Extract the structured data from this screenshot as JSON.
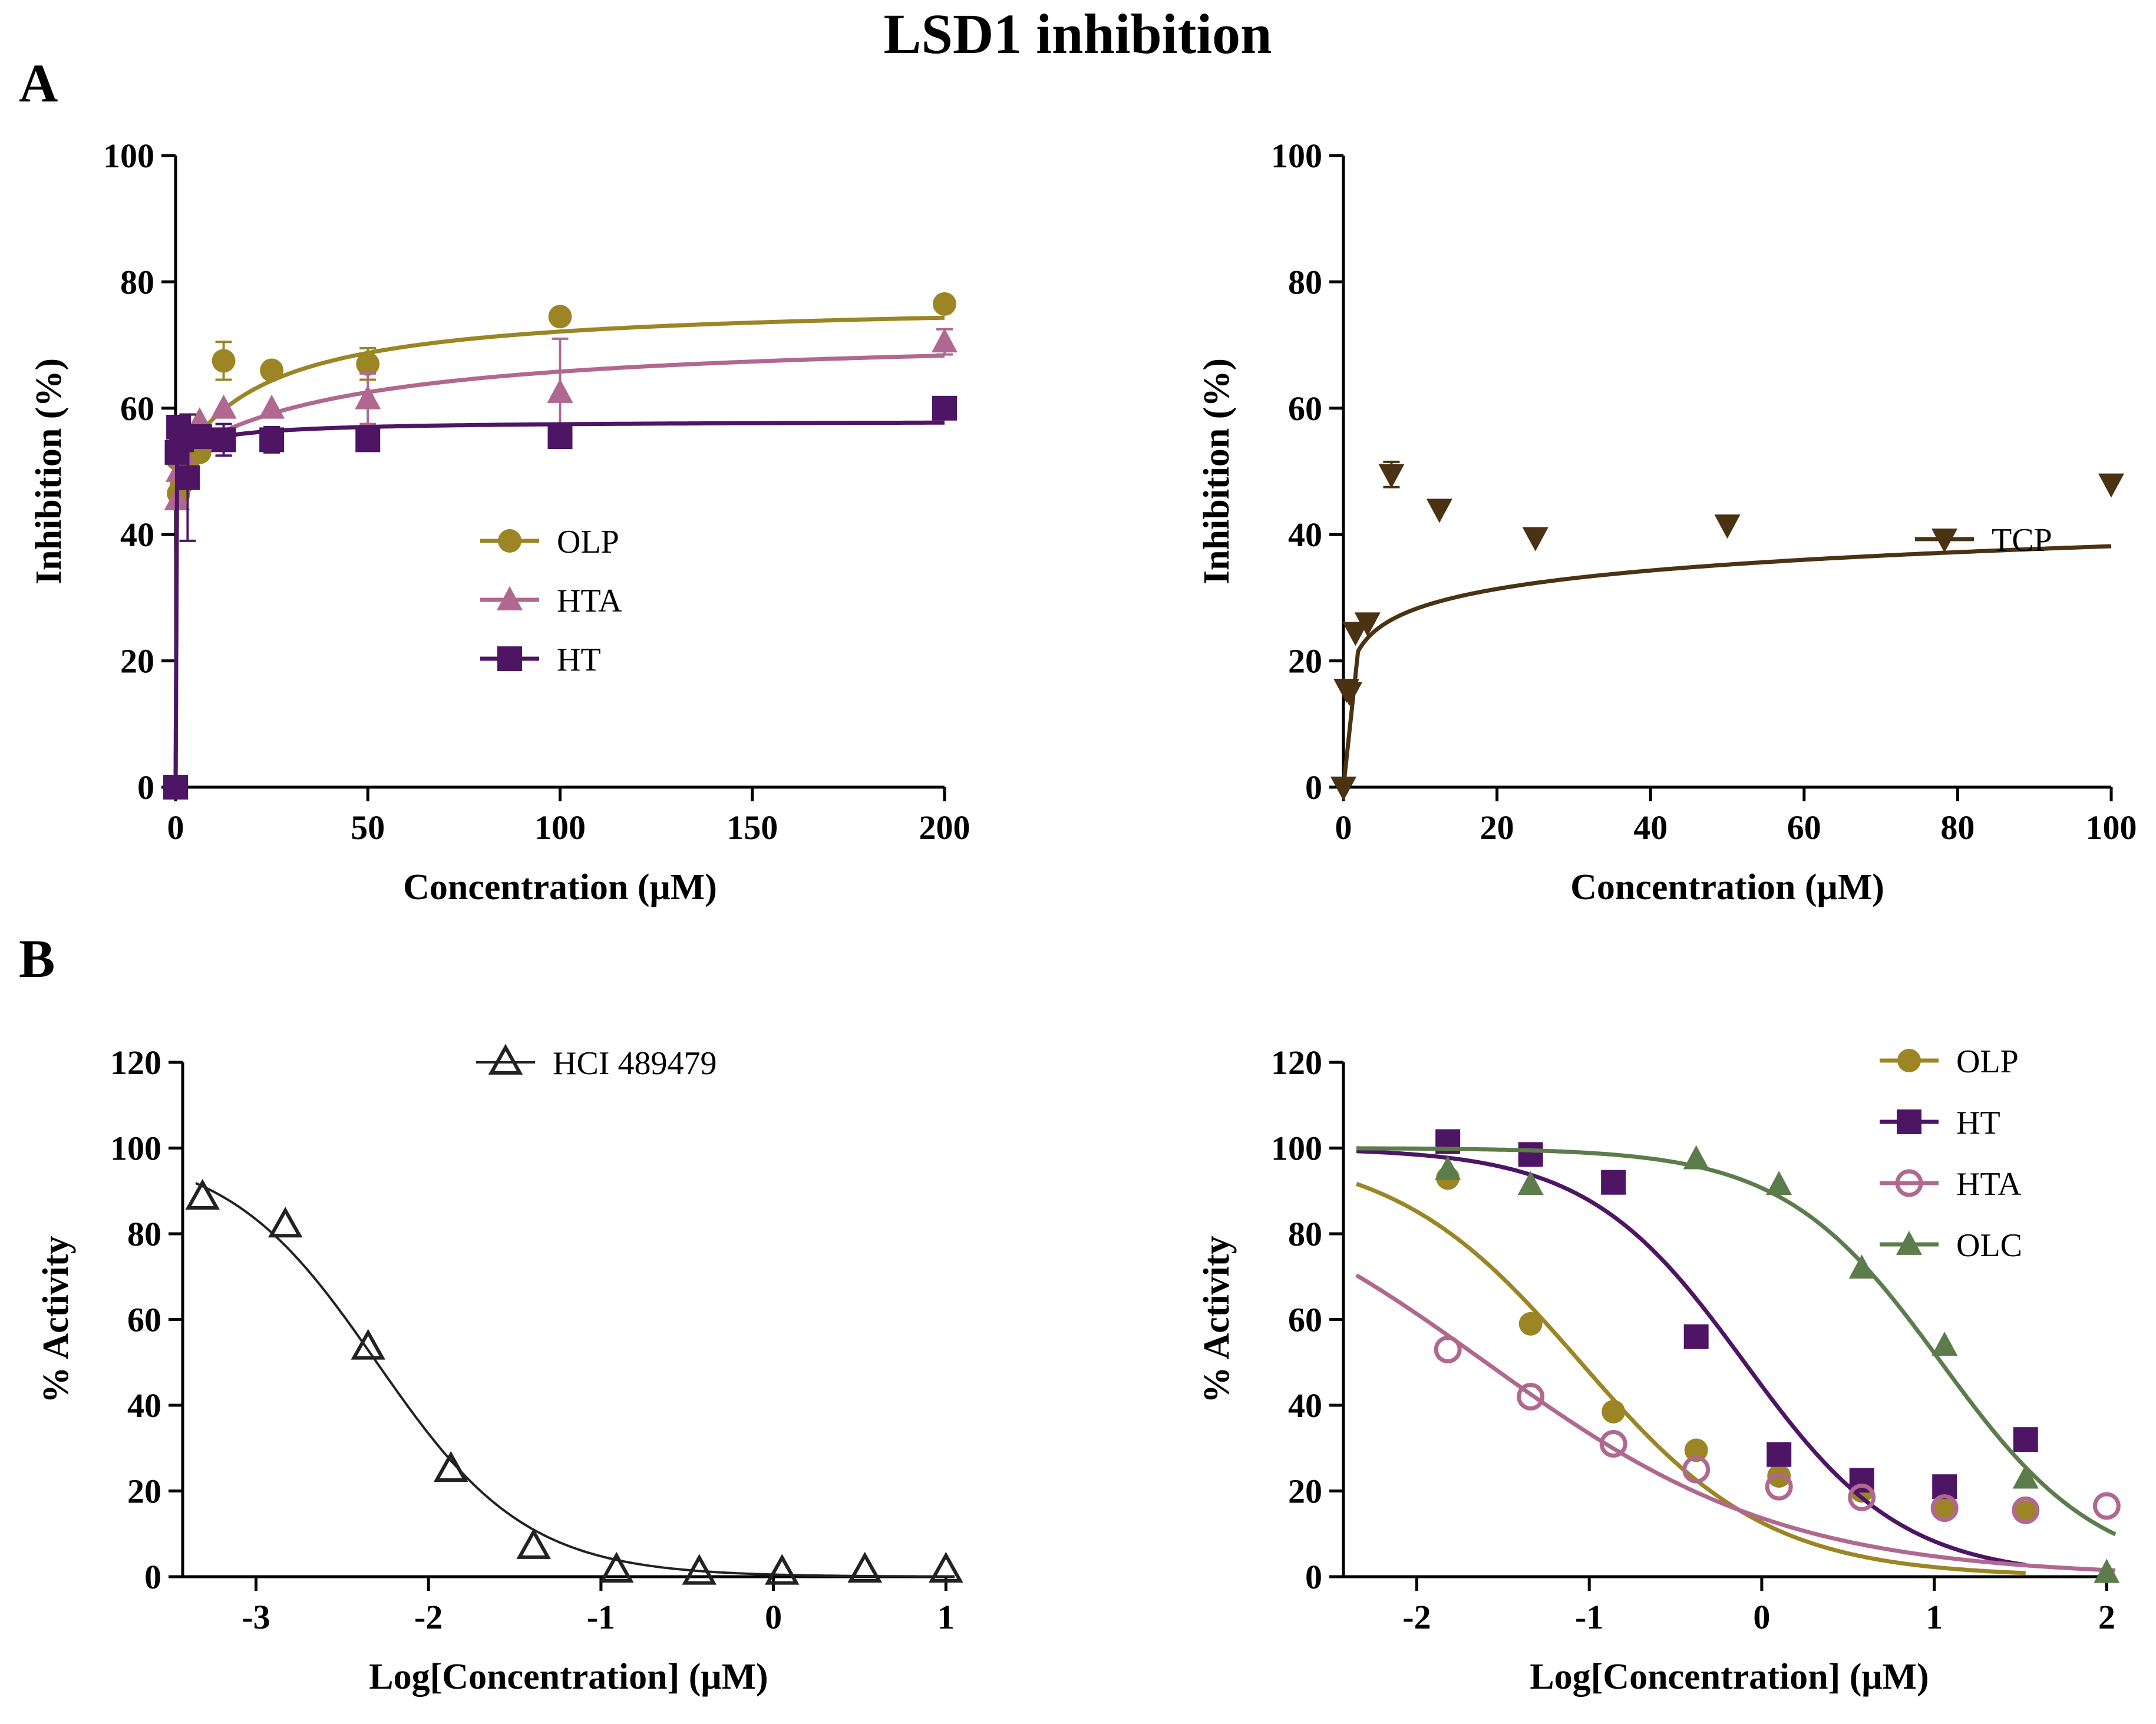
{
  "figure": {
    "title": "LSD1 inhibition",
    "panel_labels": [
      "A",
      "B"
    ]
  },
  "colors": {
    "OLP": "#9b8524",
    "HTA": "#b06891",
    "HT": "#4e1565",
    "TCP": "#4a3213",
    "OLC": "#5d7c4c",
    "HCI": "#222222"
  },
  "chart_data": [
    {
      "id": "A1",
      "type": "scatter",
      "title": "",
      "xlabel": "Concentration (μM)",
      "ylabel": "Inhibition (%)",
      "xlim": [
        0,
        200
      ],
      "ylim": [
        0,
        100
      ],
      "xticks": [
        0,
        50,
        100,
        150,
        200
      ],
      "yticks": [
        0,
        20,
        40,
        60,
        80,
        100
      ],
      "legend_position": "center-right",
      "series": [
        {
          "name": "OLP",
          "marker": "circle",
          "color": "#9b8524",
          "x": [
            0,
            0.39,
            0.78,
            1.56,
            3.13,
            6.25,
            12.5,
            25,
            50,
            100,
            200
          ],
          "y": [
            0,
            52,
            46.5,
            48,
            51.5,
            53,
            67.5,
            66,
            67,
            74.5,
            76.5
          ],
          "err": [
            0,
            0,
            0,
            0,
            0,
            0,
            3,
            0,
            2.5,
            0,
            0
          ],
          "fit": {
            "kind": "hyperbola",
            "y0": 50,
            "ymax": 27,
            "k": 22,
            "zero_start": true
          }
        },
        {
          "name": "HTA",
          "marker": "triangle",
          "color": "#b06891",
          "x": [
            0,
            0.39,
            0.78,
            1.56,
            3.13,
            6.25,
            12.5,
            25,
            50,
            100,
            200
          ],
          "y": [
            0,
            45.5,
            50,
            53,
            56,
            58,
            60,
            60,
            61.5,
            62.5,
            70.5
          ],
          "err": [
            0,
            0,
            0,
            0,
            0,
            0,
            0,
            0,
            4,
            8.5,
            2
          ],
          "fit": {
            "kind": "hyperbola",
            "y0": 52,
            "ymax": 20,
            "k": 45,
            "zero_start": true
          }
        },
        {
          "name": "HT",
          "marker": "square",
          "color": "#4e1565",
          "x": [
            0,
            0.39,
            0.78,
            1.56,
            3.13,
            6.25,
            12.5,
            25,
            50,
            100,
            200
          ],
          "y": [
            0,
            53,
            57,
            55,
            49,
            55.5,
            55,
            55,
            55,
            55.5,
            60
          ],
          "err": [
            0,
            0,
            0,
            0,
            10,
            0,
            2.5,
            2,
            0,
            0,
            0
          ],
          "fit": {
            "kind": "hyperbola",
            "y0": 53,
            "ymax": 5,
            "k": 12,
            "zero_start": true
          }
        }
      ]
    },
    {
      "id": "A2",
      "type": "scatter",
      "title": "",
      "xlabel": "Concentration (μM)",
      "ylabel": "Inhibition (%)",
      "xlim": [
        0,
        100
      ],
      "ylim": [
        0,
        100
      ],
      "xticks": [
        0,
        20,
        40,
        60,
        80,
        100
      ],
      "yticks": [
        0,
        20,
        40,
        60,
        80,
        100
      ],
      "legend_position": "right",
      "series": [
        {
          "name": "TCP",
          "marker": "triangle-down",
          "color": "#4a3213",
          "x": [
            0,
            0.39,
            0.78,
            1.56,
            3.13,
            6.25,
            12.5,
            25,
            50,
            100
          ],
          "y": [
            0,
            15.5,
            15,
            24.5,
            26,
            49.5,
            44,
            39.5,
            41.5,
            48
          ],
          "err": [
            0,
            0,
            0,
            0,
            0,
            2,
            0,
            0,
            0,
            0
          ],
          "fit": {
            "kind": "log",
            "y0": 0,
            "a": 21.5,
            "b": 4.2,
            "x1": 1.9
          }
        }
      ]
    },
    {
      "id": "B1",
      "type": "scatter",
      "title": "",
      "xlabel": "Log[Concentration] (μM)",
      "ylabel": "%  Activity",
      "xlim": [
        -3.35,
        1.05
      ],
      "ylim": [
        0,
        120
      ],
      "xticks": [
        -3,
        -2,
        -1,
        0,
        1
      ],
      "yticks": [
        0,
        20,
        40,
        60,
        80,
        100,
        120
      ],
      "legend_position": "top-center",
      "series": [
        {
          "name": "HCI 489479",
          "marker": "open-triangle",
          "color": "#222222",
          "x": [
            -3.31,
            -2.83,
            -2.35,
            -1.87,
            -1.39,
            -0.91,
            -0.43,
            0.05,
            0.53,
            1.0
          ],
          "y": [
            88.5,
            82,
            53.5,
            25,
            7,
            1.5,
            1,
            1,
            1.5,
            1.5
          ],
          "fit": {
            "kind": "sigmoid",
            "top": 100,
            "bottom": 0,
            "logIC50": -2.3,
            "hill": 1.0,
            "from": -3.35,
            "to": 1.05
          }
        }
      ]
    },
    {
      "id": "B2",
      "type": "scatter",
      "title": "",
      "xlabel": "Log[Concentration] (μM)",
      "ylabel": "%  Activity",
      "xlim": [
        -2.35,
        2.05
      ],
      "ylim": [
        0,
        120
      ],
      "xticks": [
        -2,
        -1,
        0,
        1,
        2
      ],
      "yticks": [
        0,
        20,
        40,
        60,
        80,
        100,
        120
      ],
      "legend_position": "top-right",
      "series": [
        {
          "name": "OLP",
          "marker": "circle",
          "color": "#9b8524",
          "x": [
            -1.82,
            -1.34,
            -0.86,
            -0.38,
            0.1,
            0.58,
            1.06,
            1.53
          ],
          "y": [
            93,
            59,
            38.5,
            29.5,
            23.5,
            20,
            15.5,
            15
          ],
          "fit": {
            "kind": "sigmoid",
            "top": 100,
            "bottom": 0,
            "logIC50": -1.05,
            "hill": 0.8,
            "from": -2.35,
            "to": 1.53
          }
        },
        {
          "name": "HT",
          "marker": "square",
          "color": "#4e1565",
          "x": [
            -1.82,
            -1.34,
            -0.86,
            -0.38,
            0.1,
            0.58,
            1.06,
            1.53
          ],
          "y": [
            101.5,
            98.5,
            92,
            56,
            28.5,
            22.5,
            21,
            32
          ],
          "fit": {
            "kind": "sigmoid",
            "top": 100,
            "bottom": 0,
            "logIC50": -0.1,
            "hill": 0.95,
            "from": -2.35,
            "to": 1.53
          }
        },
        {
          "name": "HTA",
          "marker": "open-circle",
          "color": "#b06891",
          "x": [
            -1.82,
            -1.34,
            -0.86,
            -0.38,
            0.1,
            0.58,
            1.06,
            1.53,
            2.0
          ],
          "y": [
            53,
            42,
            31,
            25,
            21,
            18.5,
            16,
            15.5,
            16.5
          ],
          "fit": {
            "kind": "sigmoid",
            "top": 100,
            "bottom": 0,
            "logIC50": -1.6,
            "hill": 0.5,
            "from": -2.35,
            "to": 2.05
          }
        },
        {
          "name": "OLC",
          "marker": "triangle",
          "color": "#5d7c4c",
          "x": [
            -1.82,
            -1.34,
            -0.38,
            0.1,
            0.58,
            1.06,
            1.53,
            2.0
          ],
          "y": [
            95,
            91.5,
            97.5,
            91.5,
            72,
            54,
            23,
            1
          ],
          "fit": {
            "kind": "sigmoid",
            "top": 100,
            "bottom": 0,
            "logIC50": 1.04,
            "hill": 0.95,
            "from": -2.35,
            "to": 2.05
          }
        }
      ]
    }
  ]
}
